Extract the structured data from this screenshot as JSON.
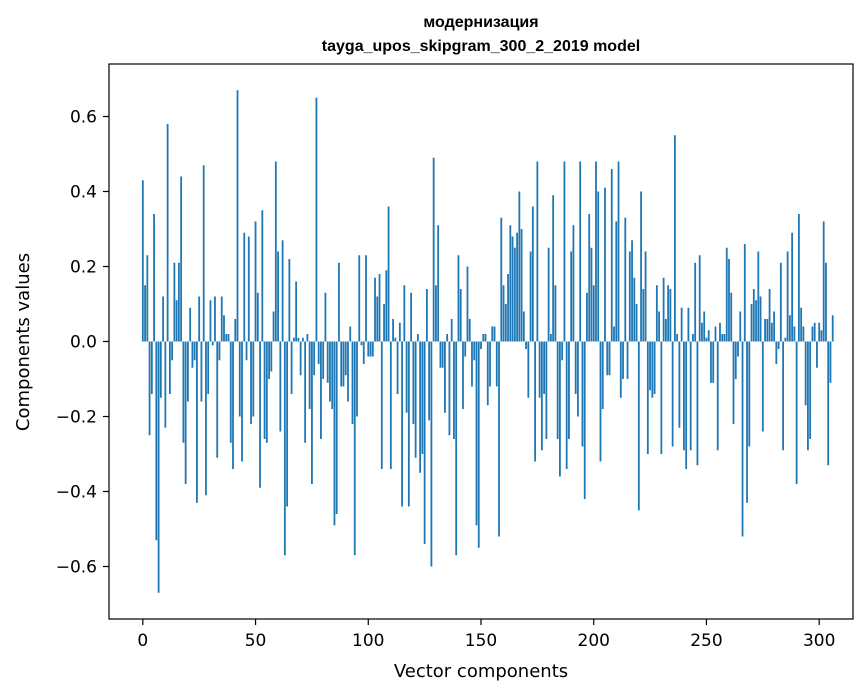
{
  "chart_data": {
    "type": "bar",
    "title": "модернизация",
    "subtitle": "tayga_upos_skipgram_300_2_2019 model",
    "xlabel": "Vector components",
    "ylabel": "Components values",
    "xlim": [
      -15,
      315
    ],
    "ylim": [
      -0.74,
      0.74
    ],
    "x_ticks": [
      0,
      50,
      100,
      150,
      200,
      250,
      300
    ],
    "y_ticks": [
      -0.6,
      -0.4,
      -0.2,
      0.0,
      0.2,
      0.4,
      0.6
    ],
    "x_tick_labels": [
      "0",
      "50",
      "100",
      "150",
      "200",
      "250",
      "300"
    ],
    "y_tick_labels": [
      "−0.6",
      "−0.4",
      "−0.2",
      "0.0",
      "0.2",
      "0.4",
      "0.6"
    ],
    "grid": false,
    "bar_color": "#1f77b4",
    "values": [
      0.43,
      0.15,
      0.23,
      -0.25,
      -0.14,
      0.34,
      -0.53,
      -0.67,
      -0.15,
      0.12,
      -0.23,
      0.58,
      -0.14,
      -0.05,
      0.21,
      0.11,
      0.21,
      0.44,
      -0.27,
      -0.38,
      -0.16,
      0.09,
      -0.07,
      -0.05,
      -0.43,
      0.12,
      -0.16,
      0.47,
      -0.41,
      -0.14,
      0.11,
      -0.01,
      0.12,
      -0.31,
      -0.05,
      0.12,
      0.07,
      0.02,
      0.02,
      -0.27,
      -0.34,
      0.06,
      0.67,
      -0.2,
      -0.32,
      0.29,
      -0.05,
      0.28,
      -0.22,
      -0.2,
      0.32,
      0.13,
      -0.39,
      0.35,
      -0.26,
      -0.27,
      -0.1,
      -0.08,
      0.08,
      0.48,
      0.24,
      -0.24,
      0.27,
      -0.57,
      -0.44,
      0.22,
      -0.14,
      0.01,
      0.16,
      0.01,
      -0.09,
      0.01,
      -0.27,
      0.02,
      -0.18,
      -0.38,
      -0.09,
      0.65,
      -0.06,
      -0.26,
      -0.1,
      0.13,
      -0.11,
      -0.16,
      -0.18,
      -0.49,
      -0.46,
      0.21,
      -0.12,
      -0.12,
      -0.09,
      -0.16,
      0.04,
      -0.22,
      -0.57,
      -0.2,
      0.23,
      -0.01,
      -0.06,
      0.23,
      -0.04,
      -0.04,
      -0.04,
      0.17,
      0.12,
      0.18,
      -0.34,
      0.1,
      0.19,
      0.36,
      -0.34,
      0.06,
      0.01,
      -0.14,
      0.05,
      -0.44,
      0.15,
      -0.19,
      -0.44,
      0.13,
      -0.22,
      -0.31,
      0.02,
      -0.35,
      -0.3,
      -0.54,
      0.14,
      -0.21,
      -0.6,
      0.49,
      0.15,
      0.31,
      -0.07,
      -0.07,
      -0.19,
      0.02,
      -0.25,
      0.06,
      -0.26,
      -0.57,
      0.23,
      0.14,
      -0.18,
      -0.04,
      0.2,
      0.06,
      -0.12,
      -0.05,
      -0.49,
      -0.55,
      -0.02,
      0.02,
      0.02,
      -0.17,
      -0.12,
      0.04,
      0.04,
      -0.12,
      -0.52,
      0.33,
      0.15,
      0.1,
      0.18,
      0.31,
      0.28,
      0.25,
      0.29,
      0.4,
      0.3,
      0.08,
      -0.02,
      -0.15,
      0.24,
      0.36,
      -0.32,
      0.48,
      -0.15,
      -0.29,
      -0.14,
      -0.26,
      0.25,
      0.02,
      0.39,
      0.15,
      -0.26,
      -0.36,
      -0.05,
      0.48,
      -0.34,
      -0.26,
      0.24,
      0.31,
      -0.14,
      -0.2,
      0.48,
      -0.28,
      -0.42,
      0.13,
      0.34,
      0.25,
      0.15,
      0.48,
      0.4,
      -0.32,
      -0.18,
      0.41,
      -0.09,
      -0.09,
      0.46,
      0.04,
      0.32,
      0.48,
      -0.15,
      -0.1,
      0.33,
      -0.1,
      0.24,
      0.27,
      0.17,
      0.1,
      -0.45,
      0.4,
      0.14,
      0.24,
      -0.3,
      -0.13,
      -0.15,
      -0.14,
      0.15,
      0.08,
      -0.3,
      0.17,
      0.06,
      0.15,
      0.14,
      -0.28,
      0.55,
      0.02,
      -0.23,
      0.09,
      -0.29,
      -0.34,
      0.09,
      -0.29,
      0.02,
      0.21,
      -0.33,
      0.23,
      0.05,
      0.08,
      0.01,
      0.03,
      -0.11,
      -0.11,
      0.04,
      -0.29,
      0.05,
      0.02,
      0.02,
      0.25,
      0.22,
      0.13,
      -0.22,
      -0.1,
      -0.04,
      0.08,
      -0.52,
      0.26,
      -0.43,
      -0.28,
      0.1,
      0.14,
      0.11,
      0.24,
      0.12,
      -0.24,
      0.06,
      0.06,
      0.14,
      0.05,
      0.08,
      -0.06,
      -0.02,
      0.21,
      -0.29,
      0.01,
      0.24,
      0.07,
      0.29,
      0.04,
      -0.38,
      0.34,
      0.09,
      0.04,
      -0.17,
      -0.29,
      -0.26,
      0.04,
      0.05,
      -0.07,
      0.05,
      0.03,
      0.32,
      0.21,
      -0.33,
      -0.11,
      0.07
    ]
  }
}
